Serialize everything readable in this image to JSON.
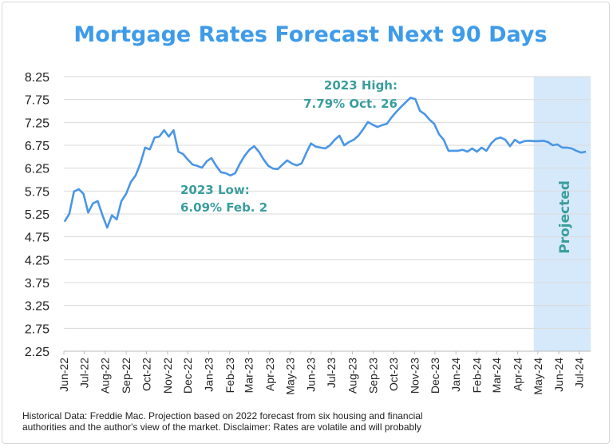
{
  "chart_data": {
    "type": "line",
    "title": "Mortgage Rates Forecast Next 90 Days",
    "xlabel": "",
    "ylabel": "",
    "ylim": [
      2.25,
      8.25
    ],
    "xlim": [
      "2022-06-01",
      "2024-07-18"
    ],
    "yticks": [
      "8.25",
      "7.75",
      "7.25",
      "6.75",
      "6.25",
      "5.75",
      "5.25",
      "4.75",
      "4.25",
      "3.75",
      "3.25",
      "2.75",
      "2.25"
    ],
    "xticks": [
      {
        "date": "2022-06-01",
        "label": "Jun-22"
      },
      {
        "date": "2022-07-01",
        "label": "Jul-22"
      },
      {
        "date": "2022-08-01",
        "label": "Aug-22"
      },
      {
        "date": "2022-09-01",
        "label": "Sep-22"
      },
      {
        "date": "2022-10-01",
        "label": "Oct-22"
      },
      {
        "date": "2022-11-01",
        "label": "Nov-22"
      },
      {
        "date": "2022-12-01",
        "label": "Dec-22"
      },
      {
        "date": "2023-01-01",
        "label": "Jan-23"
      },
      {
        "date": "2023-02-01",
        "label": "Feb-23"
      },
      {
        "date": "2023-03-01",
        "label": "Mar-23"
      },
      {
        "date": "2023-04-01",
        "label": "Apr-23"
      },
      {
        "date": "2023-05-01",
        "label": "May-23"
      },
      {
        "date": "2023-06-01",
        "label": "Jun-23"
      },
      {
        "date": "2023-07-01",
        "label": "Jul-23"
      },
      {
        "date": "2023-08-01",
        "label": "Aug-23"
      },
      {
        "date": "2023-09-01",
        "label": "Sep-23"
      },
      {
        "date": "2023-10-01",
        "label": "Oct-23"
      },
      {
        "date": "2023-11-01",
        "label": "Nov-23"
      },
      {
        "date": "2023-12-01",
        "label": "Dec-23"
      },
      {
        "date": "2024-01-01",
        "label": "Jan-24"
      },
      {
        "date": "2024-02-01",
        "label": "Feb-24"
      },
      {
        "date": "2024-03-01",
        "label": "Mar-24"
      },
      {
        "date": "2024-04-01",
        "label": "Apr-24"
      },
      {
        "date": "2024-05-01",
        "label": "May-24"
      },
      {
        "date": "2024-06-01",
        "label": "Jun-24"
      },
      {
        "date": "2024-07-01",
        "label": "Jul-24"
      }
    ],
    "grid": true,
    "line_color": "#4a96e6",
    "projected_band": {
      "label": "Projected",
      "from": "2024-04-25",
      "to": "2024-07-18",
      "color": "#d6e9fb"
    },
    "annotations": [
      {
        "lines": [
          "2023 High:",
          "7.79% Oct. 26"
        ]
      },
      {
        "lines": [
          "2023 Low:",
          "6.09% Feb. 2"
        ]
      }
    ],
    "x": [
      "2022-06-02",
      "2022-06-09",
      "2022-06-16",
      "2022-06-23",
      "2022-06-30",
      "2022-07-07",
      "2022-07-14",
      "2022-07-21",
      "2022-07-28",
      "2022-08-04",
      "2022-08-11",
      "2022-08-18",
      "2022-08-25",
      "2022-09-01",
      "2022-09-08",
      "2022-09-15",
      "2022-09-22",
      "2022-09-29",
      "2022-10-06",
      "2022-10-13",
      "2022-10-20",
      "2022-10-27",
      "2022-11-03",
      "2022-11-10",
      "2022-11-17",
      "2022-11-24",
      "2022-12-01",
      "2022-12-08",
      "2022-12-15",
      "2022-12-22",
      "2022-12-29",
      "2023-01-05",
      "2023-01-12",
      "2023-01-19",
      "2023-01-26",
      "2023-02-02",
      "2023-02-09",
      "2023-02-16",
      "2023-02-23",
      "2023-03-02",
      "2023-03-09",
      "2023-03-16",
      "2023-03-23",
      "2023-03-30",
      "2023-04-06",
      "2023-04-13",
      "2023-04-20",
      "2023-04-27",
      "2023-05-04",
      "2023-05-11",
      "2023-05-18",
      "2023-05-25",
      "2023-06-01",
      "2023-06-08",
      "2023-06-15",
      "2023-06-22",
      "2023-06-29",
      "2023-07-06",
      "2023-07-13",
      "2023-07-20",
      "2023-07-27",
      "2023-08-03",
      "2023-08-10",
      "2023-08-17",
      "2023-08-24",
      "2023-08-31",
      "2023-09-07",
      "2023-09-14",
      "2023-09-21",
      "2023-09-28",
      "2023-10-05",
      "2023-10-12",
      "2023-10-19",
      "2023-10-26",
      "2023-11-02",
      "2023-11-09",
      "2023-11-16",
      "2023-11-23",
      "2023-11-30",
      "2023-12-07",
      "2023-12-14",
      "2023-12-21",
      "2023-12-28",
      "2024-01-04",
      "2024-01-11",
      "2024-01-18",
      "2024-01-25",
      "2024-02-01",
      "2024-02-08",
      "2024-02-15",
      "2024-02-22",
      "2024-02-29",
      "2024-03-07",
      "2024-03-14",
      "2024-03-21",
      "2024-03-28",
      "2024-04-04",
      "2024-04-11",
      "2024-04-18",
      "2024-04-25",
      "2024-05-02",
      "2024-05-09",
      "2024-05-16",
      "2024-05-23",
      "2024-05-30",
      "2024-06-06",
      "2024-06-13",
      "2024-06-20",
      "2024-06-27",
      "2024-07-04",
      "2024-07-11"
    ],
    "values": [
      5.08,
      5.25,
      5.74,
      5.79,
      5.69,
      5.28,
      5.48,
      5.53,
      5.22,
      4.95,
      5.22,
      5.13,
      5.53,
      5.69,
      5.95,
      6.09,
      6.35,
      6.7,
      6.66,
      6.92,
      6.94,
      7.08,
      6.94,
      7.08,
      6.61,
      6.56,
      6.44,
      6.33,
      6.3,
      6.26,
      6.4,
      6.47,
      6.3,
      6.16,
      6.14,
      6.09,
      6.14,
      6.35,
      6.52,
      6.65,
      6.73,
      6.61,
      6.44,
      6.3,
      6.24,
      6.23,
      6.33,
      6.42,
      6.35,
      6.31,
      6.35,
      6.58,
      6.79,
      6.72,
      6.7,
      6.68,
      6.75,
      6.87,
      6.96,
      6.75,
      6.82,
      6.87,
      6.96,
      7.1,
      7.26,
      7.2,
      7.15,
      7.19,
      7.22,
      7.36,
      7.48,
      7.59,
      7.69,
      7.79,
      7.76,
      7.5,
      7.43,
      7.31,
      7.22,
      6.99,
      6.87,
      6.63,
      6.63,
      6.63,
      6.65,
      6.61,
      6.68,
      6.61,
      6.7,
      6.63,
      6.79,
      6.89,
      6.92,
      6.87,
      6.73,
      6.87,
      6.8,
      6.84,
      6.85,
      6.84,
      6.84,
      6.85,
      6.82,
      6.75,
      6.77,
      6.7,
      6.7,
      6.68,
      6.63,
      6.59,
      6.61
    ]
  },
  "footer": {
    "lines": [
      "Historical Data: Freddie Mac. Projection based on 2022 forecast from six housing and financial",
      "authorities and the author's view of the market. Disclaimer: Rates are volatile and will probably"
    ]
  }
}
